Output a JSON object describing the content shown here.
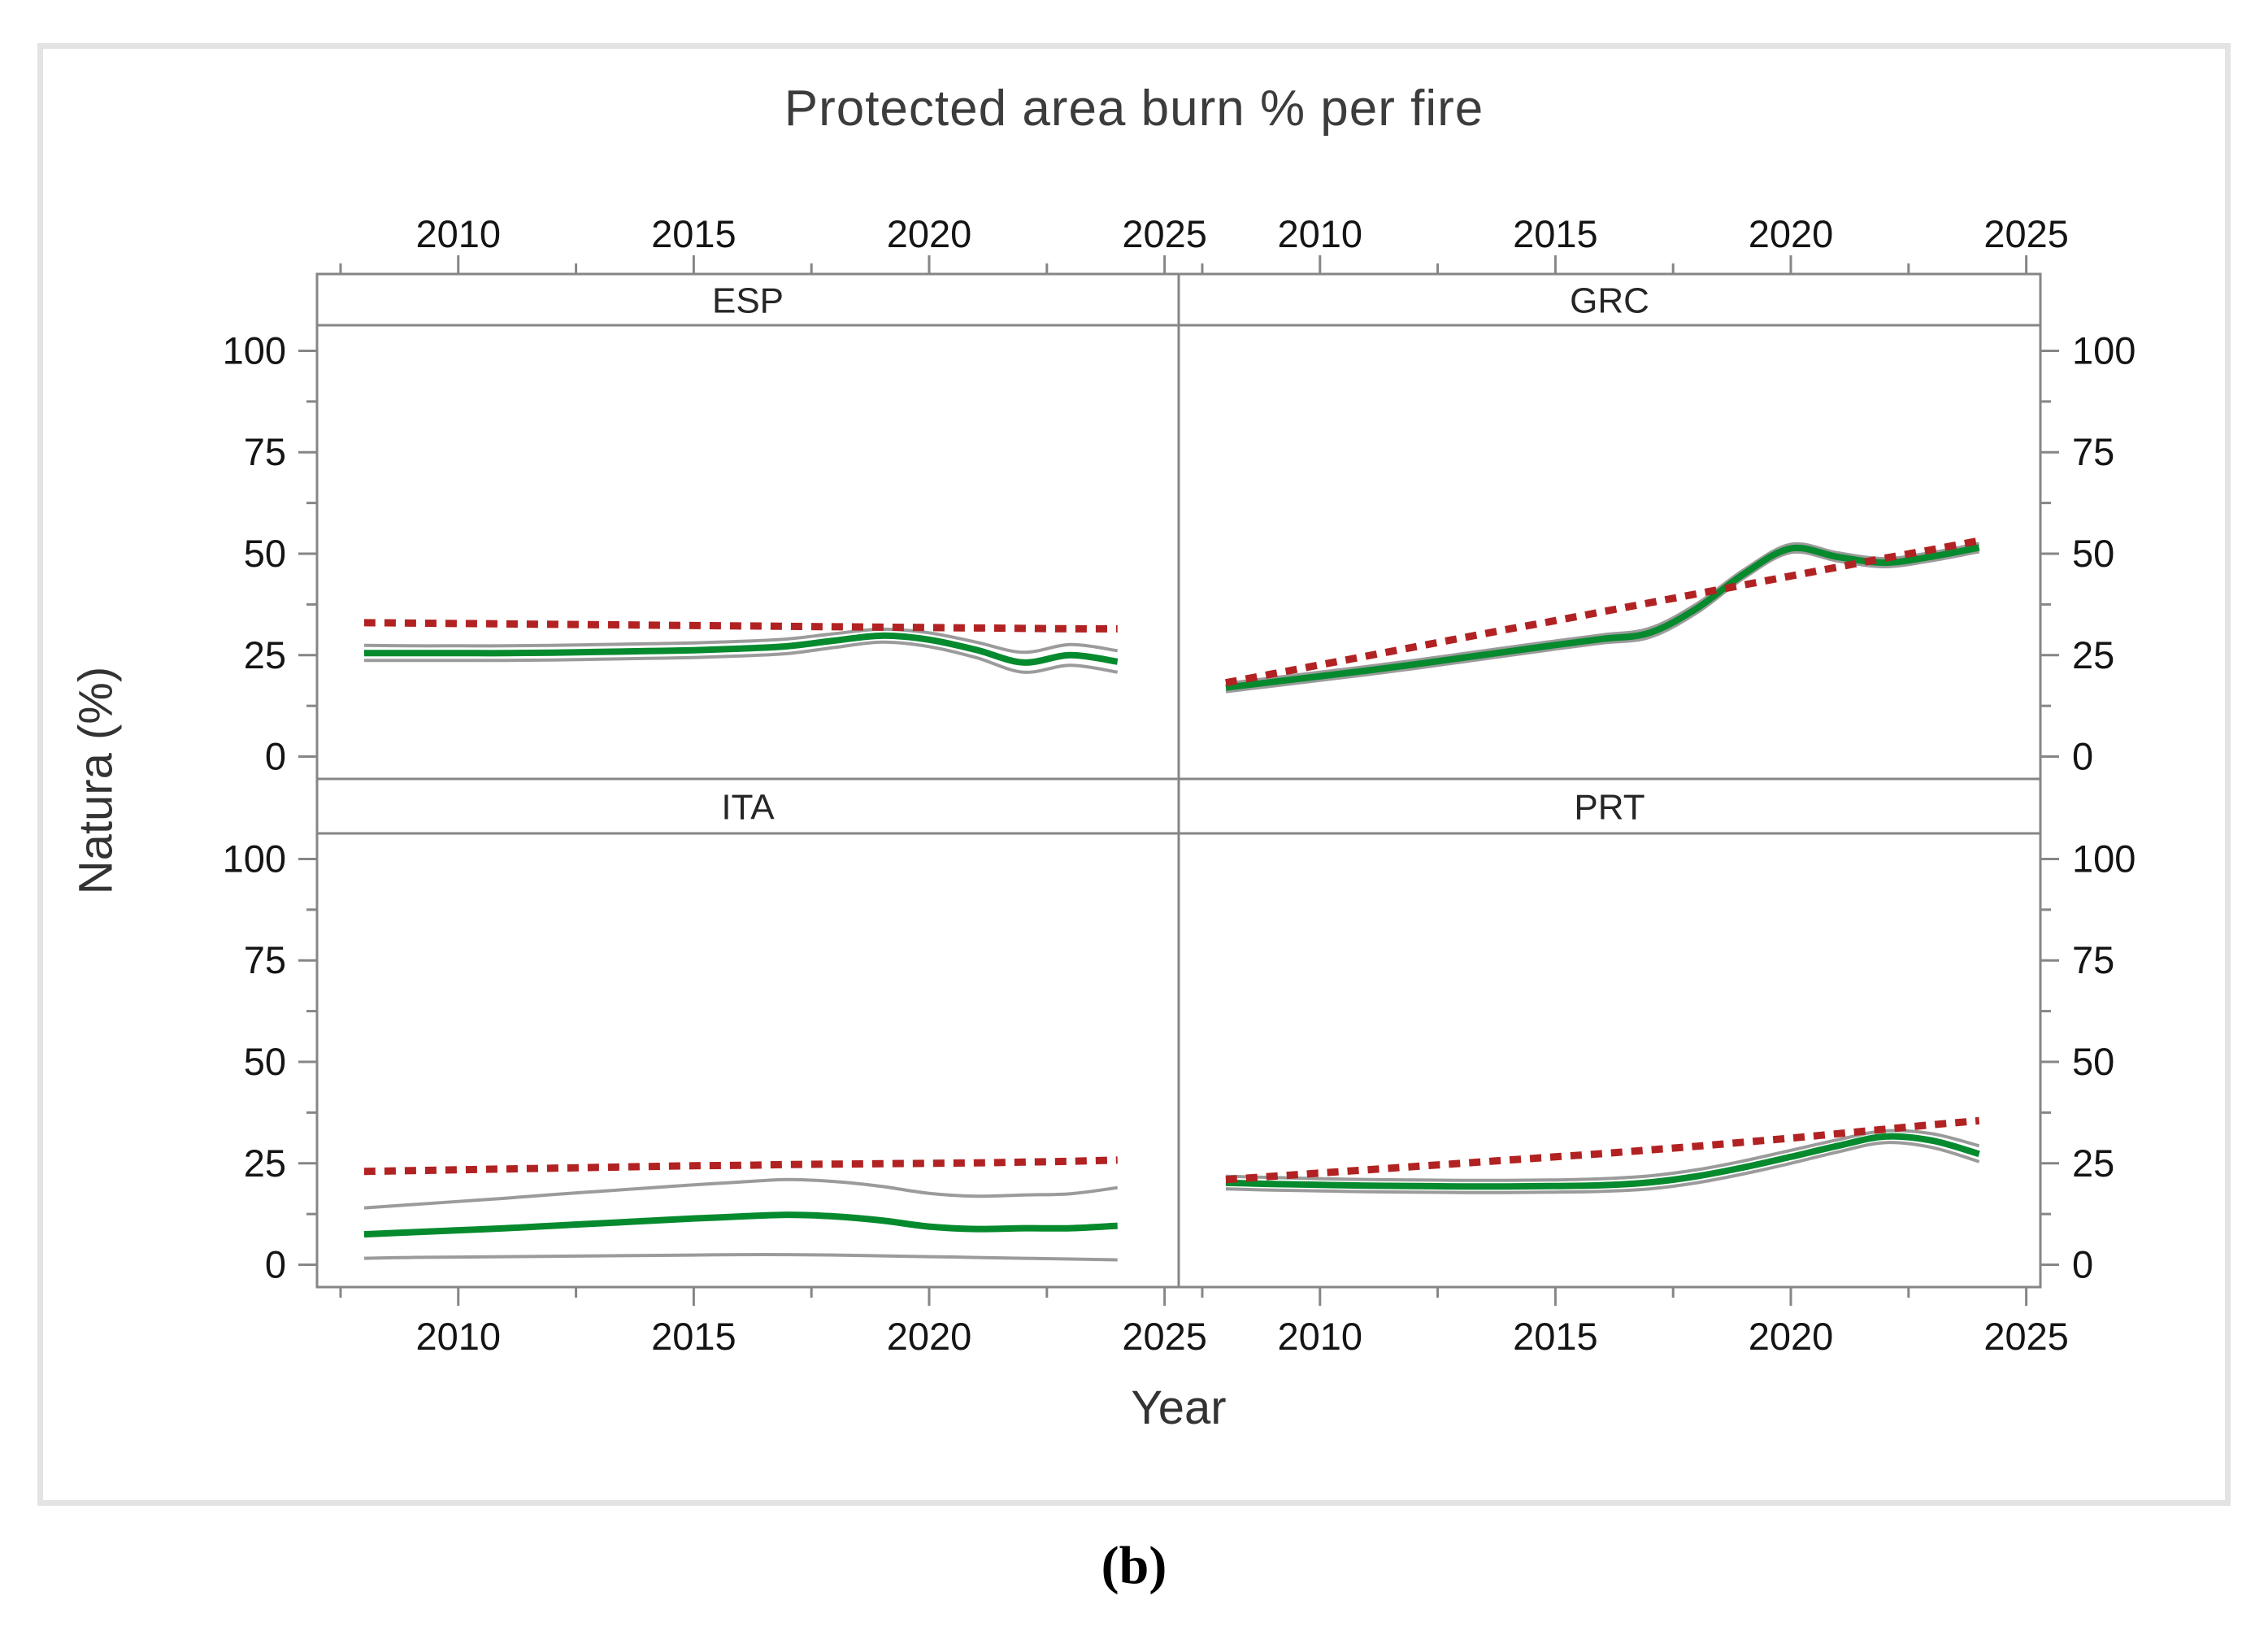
{
  "figure": {
    "title": "Protected area burn % per fire",
    "x_axis_label": "Year",
    "y_axis_label": "Natura (%)",
    "caption": "(b)"
  },
  "colors": {
    "trend_dashed": "#b22222",
    "smoothed_mean": "#068a2e",
    "confidence_band": "#9b9b9b",
    "axis": "#868686",
    "tick_text": "#141414",
    "facet_text": "#262626",
    "outer_border": "#e3e3e3"
  },
  "chart_data": {
    "type": "line",
    "title": "Protected area burn % per fire",
    "xlabel": "Year",
    "ylabel": "Natura (%)",
    "x_range": [
      2007,
      2025.3
    ],
    "y_range": [
      -5.5,
      106.3
    ],
    "x_ticks": [
      2010,
      2015,
      2020,
      2025
    ],
    "x_tick_labels": [
      "2010",
      "2015",
      "2020",
      "2025"
    ],
    "x_minor_ticks": [
      2007.5,
      2012.5,
      2017.5,
      2022.5
    ],
    "y_ticks": [
      0,
      25,
      50,
      75,
      100
    ],
    "y_tick_labels": [
      "0",
      "25",
      "50",
      "75",
      "100"
    ],
    "y_minor_ticks": [
      12.5,
      37.5,
      62.5,
      87.5
    ],
    "grid": false,
    "legend": "none",
    "years": [
      2008,
      2009,
      2010,
      2011,
      2012,
      2013,
      2014,
      2015,
      2016,
      2017,
      2018,
      2019,
      2020,
      2021,
      2022,
      2023,
      2024
    ],
    "facets": [
      {
        "label": "ESP",
        "series": {
          "trend_dashed": [
            33.0,
            32.9,
            32.8,
            32.7,
            32.6,
            32.5,
            32.4,
            32.3,
            32.2,
            32.1,
            32.0,
            31.9,
            31.8,
            31.7,
            31.6,
            31.5,
            31.5
          ],
          "smoothed_mean": [
            25.5,
            25.5,
            25.5,
            25.5,
            25.6,
            25.8,
            26.0,
            26.2,
            26.6,
            27.2,
            28.6,
            29.8,
            28.8,
            26.3,
            23.2,
            25.0,
            23.4
          ],
          "ci_upper": [
            27.4,
            27.3,
            27.3,
            27.3,
            27.4,
            27.6,
            27.8,
            28.0,
            28.4,
            29.0,
            30.3,
            31.4,
            30.5,
            28.2,
            25.7,
            27.6,
            26.1
          ],
          "ci_lower": [
            23.7,
            23.7,
            23.7,
            23.7,
            23.8,
            24.0,
            24.2,
            24.4,
            24.8,
            25.4,
            26.9,
            28.2,
            27.1,
            24.4,
            20.8,
            22.5,
            20.8
          ]
        }
      },
      {
        "label": "GRC",
        "series": {
          "trend_dashed": [
            18.2,
            20.4,
            22.6,
            24.8,
            27.0,
            29.2,
            31.4,
            33.5,
            35.7,
            37.9,
            40.1,
            42.3,
            44.5,
            46.7,
            48.9,
            51.0,
            53.2
          ],
          "smoothed_mean": [
            17.0,
            18.4,
            19.8,
            21.2,
            22.7,
            24.3,
            25.9,
            27.5,
            29.0,
            30.5,
            36.5,
            45.0,
            51.3,
            49.2,
            47.8,
            49.3,
            51.5
          ],
          "ci_upper": [
            18.0,
            19.4,
            20.8,
            22.2,
            23.7,
            25.3,
            26.9,
            28.5,
            30.0,
            31.6,
            37.6,
            46.0,
            52.3,
            50.2,
            48.8,
            50.3,
            52.5
          ],
          "ci_lower": [
            16.0,
            17.4,
            18.8,
            20.2,
            21.7,
            23.3,
            24.9,
            26.5,
            28.0,
            29.4,
            35.4,
            44.0,
            50.3,
            48.2,
            46.8,
            48.3,
            50.5
          ]
        }
      },
      {
        "label": "ITA",
        "series": {
          "trend_dashed": [
            23.0,
            23.2,
            23.4,
            23.6,
            23.8,
            24.0,
            24.2,
            24.4,
            24.5,
            24.7,
            24.8,
            24.9,
            25.0,
            25.1,
            25.3,
            25.5,
            25.8
          ],
          "smoothed_mean": [
            7.5,
            8.0,
            8.5,
            9.0,
            9.6,
            10.2,
            10.8,
            11.4,
            11.9,
            12.3,
            11.9,
            10.9,
            9.4,
            8.8,
            9.0,
            9.0,
            9.6
          ],
          "ci_upper": [
            14.0,
            14.8,
            15.6,
            16.4,
            17.3,
            18.1,
            18.9,
            19.7,
            20.4,
            21.0,
            20.5,
            19.3,
            17.6,
            16.9,
            17.2,
            17.5,
            19.0
          ],
          "ci_lower": [
            1.6,
            1.8,
            1.9,
            2.0,
            2.1,
            2.2,
            2.3,
            2.4,
            2.5,
            2.5,
            2.4,
            2.2,
            2.0,
            1.8,
            1.6,
            1.4,
            1.2
          ]
        }
      },
      {
        "label": "PRT",
        "series": {
          "trend_dashed": [
            21.0,
            21.8,
            22.6,
            23.4,
            24.2,
            25.0,
            25.8,
            26.6,
            27.4,
            28.3,
            29.2,
            30.2,
            31.2,
            32.3,
            33.4,
            34.5,
            35.5
          ],
          "smoothed_mean": [
            20.2,
            19.9,
            19.7,
            19.5,
            19.4,
            19.3,
            19.3,
            19.4,
            19.6,
            20.3,
            21.8,
            24.0,
            26.6,
            29.3,
            31.6,
            30.6,
            27.3
          ],
          "ci_upper": [
            21.8,
            21.5,
            21.2,
            21.0,
            20.9,
            20.8,
            20.8,
            20.9,
            21.2,
            21.9,
            23.4,
            25.6,
            28.2,
            30.8,
            33.0,
            32.3,
            29.3
          ],
          "ci_lower": [
            18.7,
            18.4,
            18.2,
            18.0,
            17.9,
            17.8,
            17.8,
            17.9,
            18.1,
            18.7,
            20.2,
            22.4,
            25.0,
            27.8,
            30.1,
            28.9,
            25.4
          ]
        }
      }
    ]
  }
}
